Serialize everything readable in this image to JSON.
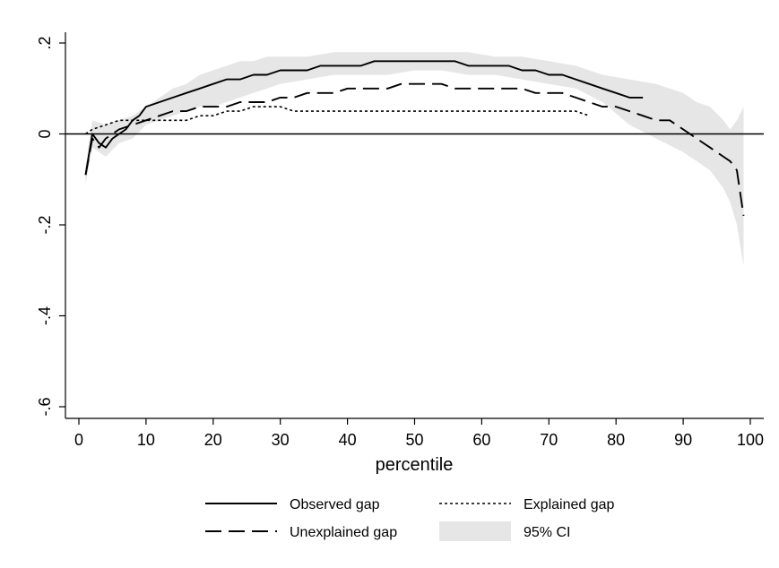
{
  "chart_data": {
    "type": "line",
    "title": "",
    "xlabel": "percentile",
    "ylabel": "",
    "xlim": [
      0,
      100
    ],
    "ylim": [
      -0.6,
      0.2
    ],
    "x_ticks": [
      0,
      10,
      20,
      30,
      40,
      50,
      60,
      70,
      80,
      90,
      100
    ],
    "x_tick_labels": [
      "0",
      "10",
      "20",
      "30",
      "40",
      "50",
      "60",
      "70",
      "80",
      "90",
      "100"
    ],
    "y_ticks": [
      -0.6,
      -0.4,
      -0.2,
      0,
      0.2
    ],
    "y_tick_labels": [
      "-.6",
      "-.4",
      "-.2",
      "0",
      ".2"
    ],
    "reference_line": 0,
    "legend_position": "bottom",
    "series": [
      {
        "name": "Observed gap",
        "style": "solid",
        "x": [
          1,
          2,
          3,
          4,
          5,
          6,
          7,
          8,
          9,
          10,
          12,
          14,
          16,
          18,
          20,
          22,
          24,
          26,
          28,
          30,
          32,
          34,
          36,
          38,
          40,
          42,
          44,
          46,
          48,
          50,
          52,
          54,
          56,
          58,
          60,
          62,
          64,
          66,
          68,
          70,
          72,
          74,
          76,
          78,
          80,
          82,
          84
        ],
        "y": [
          -0.09,
          0.0,
          -0.02,
          -0.03,
          -0.01,
          0.0,
          0.01,
          0.03,
          0.04,
          0.06,
          0.07,
          0.08,
          0.09,
          0.1,
          0.11,
          0.12,
          0.12,
          0.13,
          0.13,
          0.14,
          0.14,
          0.14,
          0.15,
          0.15,
          0.15,
          0.15,
          0.16,
          0.16,
          0.16,
          0.16,
          0.16,
          0.16,
          0.16,
          0.15,
          0.15,
          0.15,
          0.15,
          0.14,
          0.14,
          0.13,
          0.13,
          0.12,
          0.11,
          0.1,
          0.09,
          0.08,
          0.08
        ]
      },
      {
        "name": "Unexplained gap",
        "style": "dashed",
        "x": [
          1,
          2,
          3,
          4,
          5,
          6,
          8,
          10,
          12,
          14,
          16,
          18,
          20,
          22,
          24,
          26,
          28,
          30,
          32,
          34,
          36,
          38,
          40,
          42,
          44,
          46,
          48,
          50,
          52,
          54,
          56,
          58,
          60,
          62,
          64,
          66,
          68,
          70,
          72,
          74,
          76,
          78,
          80,
          82,
          84,
          86,
          88,
          90,
          92,
          94,
          96,
          97,
          98,
          99
        ],
        "y": [
          -0.09,
          -0.01,
          -0.03,
          -0.01,
          0.0,
          0.01,
          0.02,
          0.03,
          0.04,
          0.05,
          0.05,
          0.06,
          0.06,
          0.06,
          0.07,
          0.07,
          0.07,
          0.08,
          0.08,
          0.09,
          0.09,
          0.09,
          0.1,
          0.1,
          0.1,
          0.1,
          0.11,
          0.11,
          0.11,
          0.11,
          0.1,
          0.1,
          0.1,
          0.1,
          0.1,
          0.1,
          0.09,
          0.09,
          0.09,
          0.08,
          0.07,
          0.06,
          0.06,
          0.05,
          0.04,
          0.03,
          0.03,
          0.01,
          -0.01,
          -0.03,
          -0.05,
          -0.06,
          -0.08,
          -0.18
        ]
      },
      {
        "name": "Explained gap",
        "style": "dotted",
        "x": [
          1,
          2,
          4,
          6,
          8,
          10,
          12,
          14,
          16,
          18,
          20,
          22,
          24,
          26,
          28,
          30,
          32,
          34,
          36,
          38,
          40,
          42,
          44,
          46,
          48,
          50,
          52,
          54,
          56,
          58,
          60,
          62,
          64,
          66,
          68,
          70,
          72,
          74,
          76
        ],
        "y": [
          0.0,
          0.01,
          0.02,
          0.03,
          0.03,
          0.03,
          0.03,
          0.03,
          0.03,
          0.04,
          0.04,
          0.05,
          0.05,
          0.06,
          0.06,
          0.06,
          0.05,
          0.05,
          0.05,
          0.05,
          0.05,
          0.05,
          0.05,
          0.05,
          0.05,
          0.05,
          0.05,
          0.05,
          0.05,
          0.05,
          0.05,
          0.05,
          0.05,
          0.05,
          0.05,
          0.05,
          0.05,
          0.05,
          0.04
        ]
      },
      {
        "name": "95% CI",
        "style": "band",
        "x": [
          1,
          2,
          4,
          6,
          8,
          10,
          12,
          14,
          16,
          18,
          20,
          22,
          24,
          26,
          28,
          30,
          34,
          38,
          42,
          46,
          50,
          54,
          58,
          62,
          66,
          70,
          74,
          78,
          82,
          86,
          90,
          92,
          94,
          96,
          97,
          98,
          99
        ],
        "lower": [
          -0.11,
          -0.03,
          -0.05,
          -0.02,
          -0.01,
          0.02,
          0.03,
          0.04,
          0.05,
          0.06,
          0.06,
          0.07,
          0.08,
          0.09,
          0.1,
          0.11,
          0.12,
          0.13,
          0.13,
          0.13,
          0.14,
          0.14,
          0.13,
          0.13,
          0.12,
          0.11,
          0.1,
          0.07,
          0.02,
          -0.01,
          -0.04,
          -0.06,
          -0.08,
          -0.12,
          -0.15,
          -0.2,
          -0.29
        ],
        "upper": [
          -0.07,
          0.03,
          0.02,
          0.03,
          0.04,
          0.06,
          0.08,
          0.1,
          0.11,
          0.13,
          0.14,
          0.15,
          0.16,
          0.16,
          0.17,
          0.17,
          0.17,
          0.18,
          0.18,
          0.18,
          0.18,
          0.18,
          0.18,
          0.17,
          0.17,
          0.16,
          0.15,
          0.13,
          0.12,
          0.11,
          0.09,
          0.07,
          0.06,
          0.03,
          0.01,
          0.03,
          0.06
        ]
      }
    ],
    "colors": {
      "lines": "#000000",
      "ci_band": "#e6e6e6",
      "background": "#ffffff"
    }
  }
}
